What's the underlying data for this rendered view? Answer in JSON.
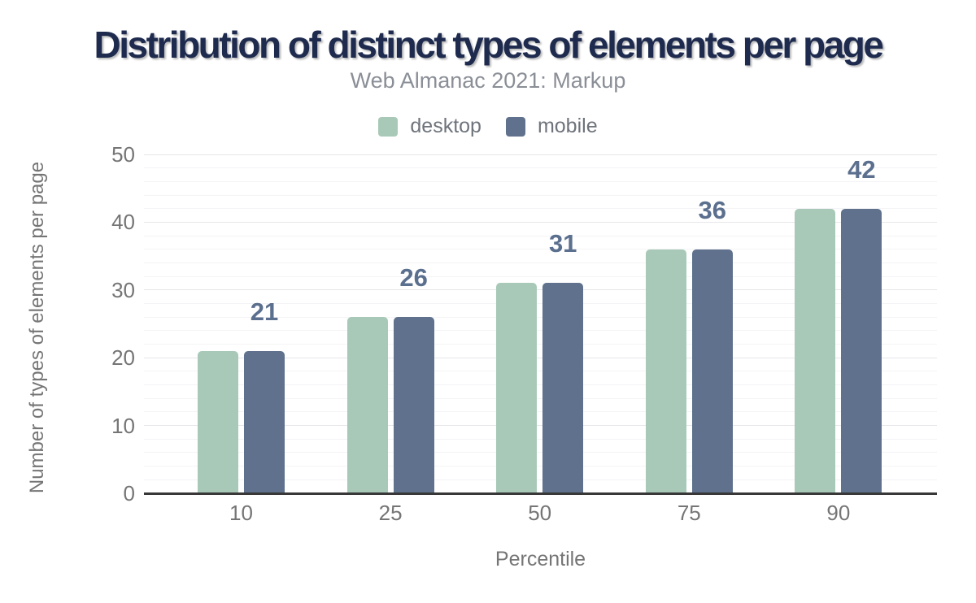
{
  "chart_data": {
    "type": "bar",
    "title": "Distribution of distinct types of elements per page",
    "subtitle": "Web Almanac 2021: Markup",
    "xlabel": "Percentile",
    "ylabel": "Number of types of elements per page",
    "categories": [
      "10",
      "25",
      "50",
      "75",
      "90"
    ],
    "series": [
      {
        "name": "desktop",
        "color": "#a8c9b8",
        "values": [
          21,
          26,
          31,
          36,
          42
        ]
      },
      {
        "name": "mobile",
        "color": "#5f718c",
        "values": [
          21,
          26,
          31,
          36,
          42
        ]
      }
    ],
    "value_labels": [
      "21",
      "26",
      "31",
      "36",
      "42"
    ],
    "ylim": [
      0,
      50
    ],
    "yticks": [
      0,
      10,
      20,
      30,
      40,
      50
    ],
    "minor_grid_step": 2,
    "grid": true,
    "legend_position": "top"
  },
  "style": {
    "background": "#ffffff",
    "title_color": "#1e2b4e",
    "subtitle_color": "#8a8e96",
    "legend_text_color": "#6f747c",
    "tick_color": "#757575",
    "axis_title_color": "#757575",
    "value_label_color": "#5b6f8e",
    "axis_line_color": "#383838",
    "grid_major_color": "#e7e7eb",
    "grid_minor_color": "#f4f4f7"
  }
}
